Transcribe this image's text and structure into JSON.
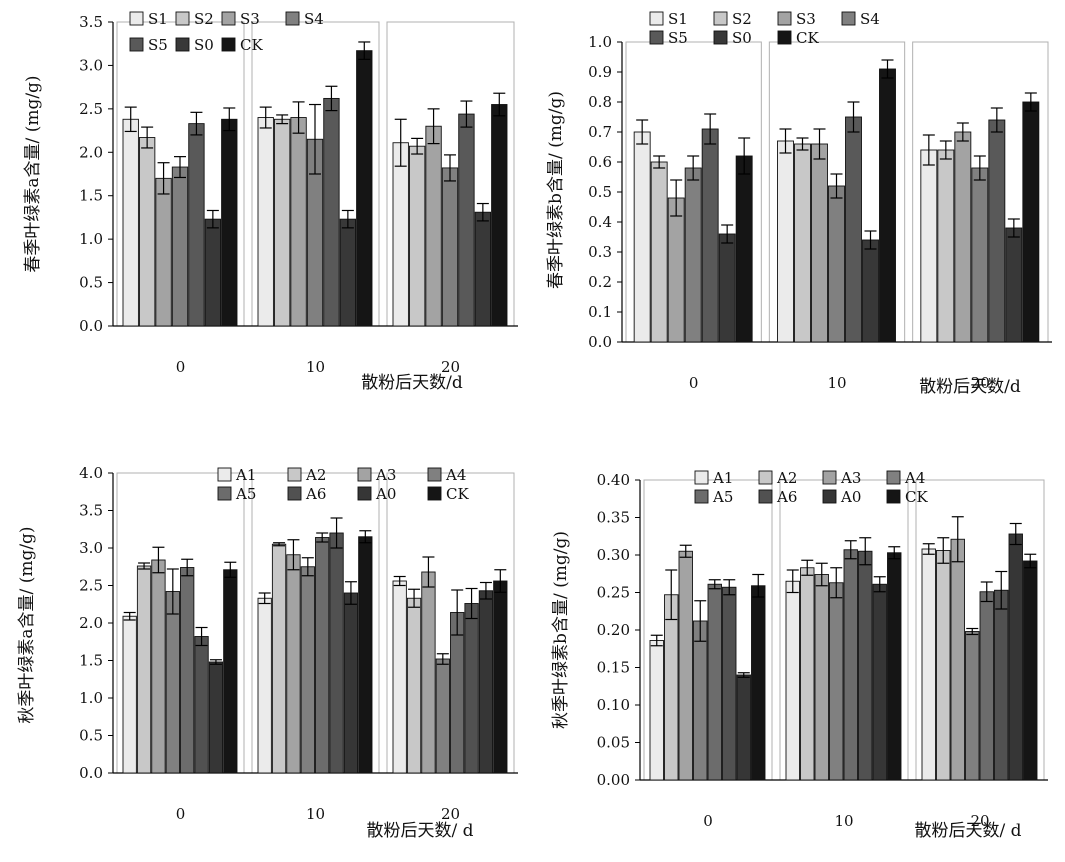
{
  "chart_data": [
    {
      "type": "bar",
      "ylabel": "春季叶绿素a含量/ (mg/g)",
      "xlabel": "散粉后天数/d",
      "categories": [
        "0",
        "10",
        "20"
      ],
      "ylim": [
        0,
        3.5
      ],
      "yticks": [
        "0.0",
        "0.5",
        "1.0",
        "1.5",
        "2.0",
        "2.5",
        "3.0",
        "3.5"
      ],
      "legend_rows": [
        [
          "S1",
          "S2",
          "S3",
          "S4"
        ],
        [
          "S5",
          "S0",
          "CK"
        ]
      ],
      "series": [
        {
          "name": "S1",
          "color": "#ebebeb",
          "values": [
            2.38,
            2.4,
            2.11
          ],
          "errors": [
            0.14,
            0.12,
            0.27
          ]
        },
        {
          "name": "S2",
          "color": "#c8c8c8",
          "values": [
            2.17,
            2.38,
            2.07
          ],
          "errors": [
            0.12,
            0.05,
            0.09
          ]
        },
        {
          "name": "S3",
          "color": "#a3a3a3",
          "values": [
            1.7,
            2.4,
            2.3
          ],
          "errors": [
            0.18,
            0.18,
            0.2
          ]
        },
        {
          "name": "S4",
          "color": "#808080",
          "values": [
            1.83,
            2.15,
            1.82
          ],
          "errors": [
            0.12,
            0.4,
            0.15
          ]
        },
        {
          "name": "S5",
          "color": "#595959",
          "values": [
            2.33,
            2.62,
            2.44
          ],
          "errors": [
            0.13,
            0.14,
            0.15
          ]
        },
        {
          "name": "S0",
          "color": "#383838",
          "values": [
            1.23,
            1.23,
            1.31
          ],
          "errors": [
            0.1,
            0.1,
            0.1
          ]
        },
        {
          "name": "CK",
          "color": "#151515",
          "values": [
            2.38,
            3.17,
            2.55
          ],
          "errors": [
            0.13,
            0.1,
            0.13
          ]
        }
      ]
    },
    {
      "type": "bar",
      "ylabel": "春季叶绿素b含量/ (mg/g)",
      "xlabel": "散粉后天数/d",
      "categories": [
        "0",
        "10",
        "20"
      ],
      "ylim": [
        0,
        1.0
      ],
      "yticks": [
        "0.0",
        "0.1",
        "0.2",
        "0.3",
        "0.4",
        "0.5",
        "0.6",
        "0.7",
        "0.8",
        "0.9",
        "1.0"
      ],
      "legend_rows": [
        [
          "S1",
          "S2",
          "S3",
          "S4"
        ],
        [
          "S5",
          "S0",
          "CK"
        ]
      ],
      "series": [
        {
          "name": "S1",
          "color": "#ebebeb",
          "values": [
            0.7,
            0.67,
            0.64
          ],
          "errors": [
            0.04,
            0.04,
            0.05
          ]
        },
        {
          "name": "S2",
          "color": "#c8c8c8",
          "values": [
            0.6,
            0.66,
            0.64
          ],
          "errors": [
            0.02,
            0.02,
            0.03
          ]
        },
        {
          "name": "S3",
          "color": "#a3a3a3",
          "values": [
            0.48,
            0.66,
            0.7
          ],
          "errors": [
            0.06,
            0.05,
            0.03
          ]
        },
        {
          "name": "S4",
          "color": "#808080",
          "values": [
            0.58,
            0.52,
            0.58
          ],
          "errors": [
            0.04,
            0.04,
            0.04
          ]
        },
        {
          "name": "S5",
          "color": "#595959",
          "values": [
            0.71,
            0.75,
            0.74
          ],
          "errors": [
            0.05,
            0.05,
            0.04
          ]
        },
        {
          "name": "S0",
          "color": "#383838",
          "values": [
            0.36,
            0.34,
            0.38
          ],
          "errors": [
            0.03,
            0.03,
            0.03
          ]
        },
        {
          "name": "CK",
          "color": "#151515",
          "values": [
            0.62,
            0.91,
            0.8
          ],
          "errors": [
            0.06,
            0.03,
            0.03
          ]
        }
      ]
    },
    {
      "type": "bar",
      "ylabel": "秋季叶绿素a含量/ (mg/g)",
      "xlabel": "散粉后天数/ d",
      "categories": [
        "0",
        "10",
        "20"
      ],
      "ylim": [
        0,
        4.0
      ],
      "yticks": [
        "0.0",
        "0.5",
        "1.0",
        "1.5",
        "2.0",
        "2.5",
        "3.0",
        "3.5",
        "4.0"
      ],
      "legend_rows": [
        [
          "A1",
          "A2",
          "A3",
          "A4"
        ],
        [
          "A5",
          "A6",
          "A0",
          "CK"
        ]
      ],
      "series": [
        {
          "name": "A1",
          "color": "#ebebeb",
          "values": [
            2.09,
            2.33,
            2.56
          ],
          "errors": [
            0.05,
            0.07,
            0.06
          ]
        },
        {
          "name": "A2",
          "color": "#c8c8c8",
          "values": [
            2.76,
            3.05,
            2.33
          ],
          "errors": [
            0.04,
            0.02,
            0.12
          ]
        },
        {
          "name": "A3",
          "color": "#a3a3a3",
          "values": [
            2.84,
            2.91,
            2.68
          ],
          "errors": [
            0.17,
            0.2,
            0.2
          ]
        },
        {
          "name": "A4",
          "color": "#808080",
          "values": [
            2.42,
            2.75,
            1.52
          ],
          "errors": [
            0.3,
            0.12,
            0.07
          ]
        },
        {
          "name": "A5",
          "color": "#6c6c6c",
          "values": [
            2.74,
            3.14,
            2.14
          ],
          "errors": [
            0.11,
            0.06,
            0.3
          ]
        },
        {
          "name": "A6",
          "color": "#515151",
          "values": [
            1.82,
            3.2,
            2.26
          ],
          "errors": [
            0.12,
            0.2,
            0.2
          ]
        },
        {
          "name": "A0",
          "color": "#363636",
          "values": [
            1.48,
            2.4,
            2.43
          ],
          "errors": [
            0.03,
            0.15,
            0.11
          ]
        },
        {
          "name": "CK",
          "color": "#151515",
          "values": [
            2.71,
            3.15,
            2.56
          ],
          "errors": [
            0.1,
            0.08,
            0.15
          ]
        }
      ]
    },
    {
      "type": "bar",
      "ylabel": "秋季叶绿素b含量/ (mg/g)",
      "xlabel": "散粉后天数/ d",
      "categories": [
        "0",
        "10",
        "20"
      ],
      "ylim": [
        0,
        0.4
      ],
      "yticks": [
        "0.00",
        "0.05",
        "0.10",
        "0.15",
        "0.20",
        "0.25",
        "0.30",
        "0.35",
        "0.40"
      ],
      "legend_rows": [
        [
          "A1",
          "A2",
          "A3",
          "A4"
        ],
        [
          "A5",
          "A6",
          "A0",
          "CK"
        ]
      ],
      "series": [
        {
          "name": "A1",
          "color": "#ebebeb",
          "values": [
            0.186,
            0.265,
            0.308
          ],
          "errors": [
            0.007,
            0.015,
            0.007
          ]
        },
        {
          "name": "A2",
          "color": "#c8c8c8",
          "values": [
            0.247,
            0.283,
            0.306
          ],
          "errors": [
            0.033,
            0.01,
            0.017
          ]
        },
        {
          "name": "A3",
          "color": "#a3a3a3",
          "values": [
            0.305,
            0.274,
            0.321
          ],
          "errors": [
            0.008,
            0.015,
            0.03
          ]
        },
        {
          "name": "A4",
          "color": "#808080",
          "values": [
            0.212,
            0.263,
            0.198
          ],
          "errors": [
            0.027,
            0.02,
            0.004
          ]
        },
        {
          "name": "A5",
          "color": "#6c6c6c",
          "values": [
            0.261,
            0.307,
            0.251
          ],
          "errors": [
            0.006,
            0.012,
            0.013
          ]
        },
        {
          "name": "A6",
          "color": "#515151",
          "values": [
            0.257,
            0.305,
            0.253
          ],
          "errors": [
            0.01,
            0.018,
            0.025
          ]
        },
        {
          "name": "A0",
          "color": "#363636",
          "values": [
            0.14,
            0.261,
            0.328
          ],
          "errors": [
            0.003,
            0.01,
            0.014
          ]
        },
        {
          "name": "CK",
          "color": "#151515",
          "values": [
            0.259,
            0.303,
            0.292
          ],
          "errors": [
            0.015,
            0.008,
            0.009
          ]
        }
      ]
    }
  ]
}
